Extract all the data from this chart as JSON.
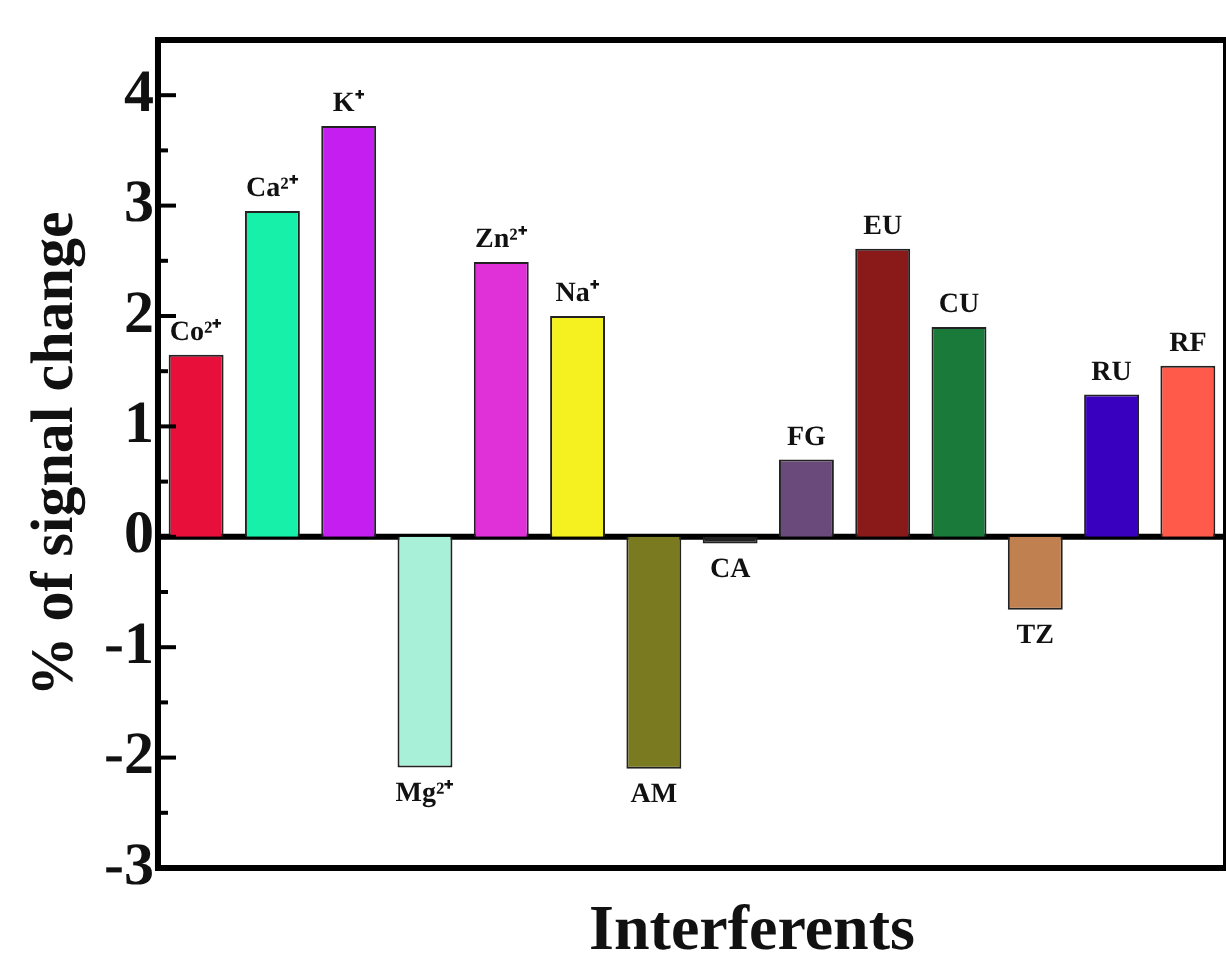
{
  "chart_data": {
    "type": "bar",
    "xlabel": "Interferents",
    "ylabel": "% of signal change",
    "categories": [
      "Co²⁺",
      "Ca²⁺",
      "K⁺",
      "Mg²⁺",
      "Zn²⁺",
      "Na⁺",
      "AM",
      "CA",
      "FG",
      "EU",
      "CU",
      "TZ",
      "RU",
      "RF"
    ],
    "values": [
      1.65,
      2.95,
      3.72,
      -2.09,
      2.49,
      2.0,
      -2.1,
      -0.06,
      0.7,
      2.61,
      1.9,
      -0.66,
      1.29,
      1.55
    ],
    "colors": [
      "#e8103a",
      "#17f0a8",
      "#c41ef0",
      "#a8f0d8",
      "#e030d8",
      "#f5f020",
      "#7a7a20",
      "#222222",
      "#6a4a7a",
      "#8a1a1a",
      "#1a7a3a",
      "#c08050",
      "#3a00c0",
      "#ff5a4a"
    ],
    "ylim": [
      -3,
      4.5
    ],
    "yticks": [
      -3,
      {
        "value": -2.5,
        "label": null
      },
      -2,
      {
        "value": -1.5,
        "label": null
      },
      -1,
      {
        "value": -0.5,
        "label": null
      },
      0,
      {
        "value": 0.5,
        "label": null
      },
      1,
      {
        "value": 1.5,
        "label": null
      },
      2,
      {
        "value": 2.5,
        "label": null
      },
      3,
      {
        "value": 3.5,
        "label": null
      },
      4
    ],
    "ref_lines": [
      {
        "axis": "y",
        "value": 0,
        "color": "#000000"
      }
    ],
    "tick_labels": "y",
    "grid": false,
    "legend": false
  }
}
